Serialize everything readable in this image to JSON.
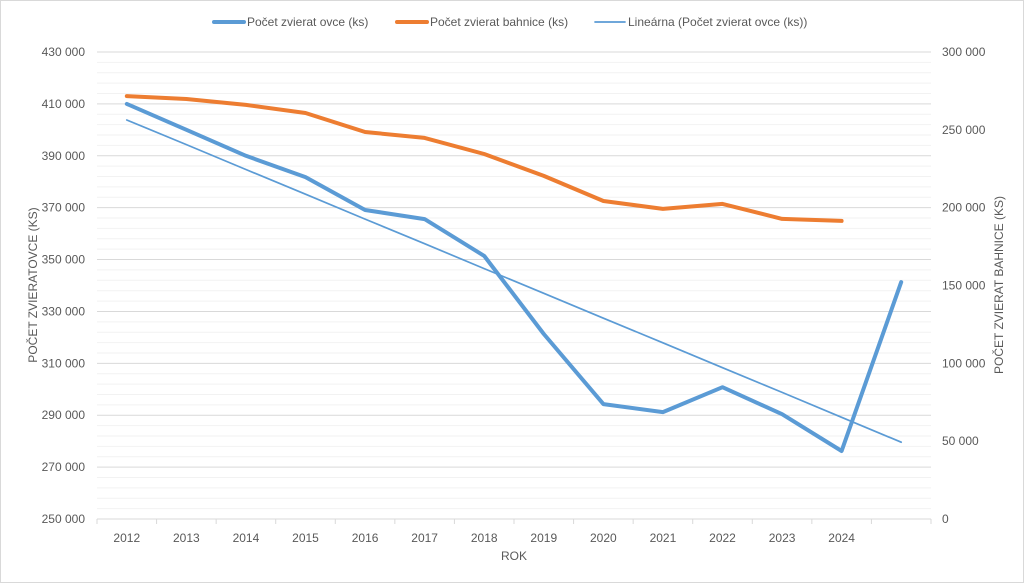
{
  "chart_data": {
    "type": "line",
    "title": "",
    "categories": [
      "2012",
      "2013",
      "2014",
      "2015",
      "2016",
      "2017",
      "2018",
      "2019",
      "2020",
      "2021",
      "2022",
      "2023",
      "2024",
      ""
    ],
    "xlabel": "ROK",
    "ylabel": "POČET ZVIERATOVCE (KS)",
    "y2label": "POČET ZVIERAT BAHNICE (KS)",
    "ylim": [
      250000,
      430000
    ],
    "y2lim": [
      0,
      300000
    ],
    "yticks": [
      250000,
      270000,
      290000,
      310000,
      330000,
      350000,
      370000,
      390000,
      410000,
      430000
    ],
    "ytick_labels": [
      "250 000",
      "270 000",
      "290 000",
      "310 000",
      "330 000",
      "350 000",
      "370 000",
      "390 000",
      "410 000",
      "430 000"
    ],
    "y2ticks": [
      0,
      50000,
      100000,
      150000,
      200000,
      250000,
      300000
    ],
    "y2tick_labels": [
      "0",
      "50 000",
      "100 000",
      "150 000",
      "200 000",
      "250 000",
      "300 000"
    ],
    "grid": true,
    "legend_position": "top",
    "series": [
      {
        "name": "Počet zvierat ovce (ks)",
        "axis": "left",
        "color": "#5b9bd5",
        "style": "thick",
        "values": [
          410000,
          400000,
          390000,
          381800,
          369100,
          365600,
          351400,
          321300,
          294300,
          291200,
          300800,
          290400,
          276200,
          341300
        ]
      },
      {
        "name": "Počet zvierat bahnice (ks)",
        "axis": "right",
        "color": "#ed7d31",
        "style": "thick",
        "values": [
          271700,
          269800,
          266000,
          260800,
          248600,
          244800,
          234500,
          220400,
          204300,
          199200,
          202400,
          192800,
          191500,
          null
        ]
      },
      {
        "name": "Lineárna (Počet zvierat ovce (ks))",
        "axis": "left",
        "color": "#5b9bd5",
        "style": "thin",
        "trendline": true,
        "values": [
          403800,
          394300,
          384700,
          375200,
          365600,
          356100,
          346500,
          337000,
          327400,
          317900,
          308300,
          298800,
          289200,
          279600
        ]
      }
    ]
  }
}
